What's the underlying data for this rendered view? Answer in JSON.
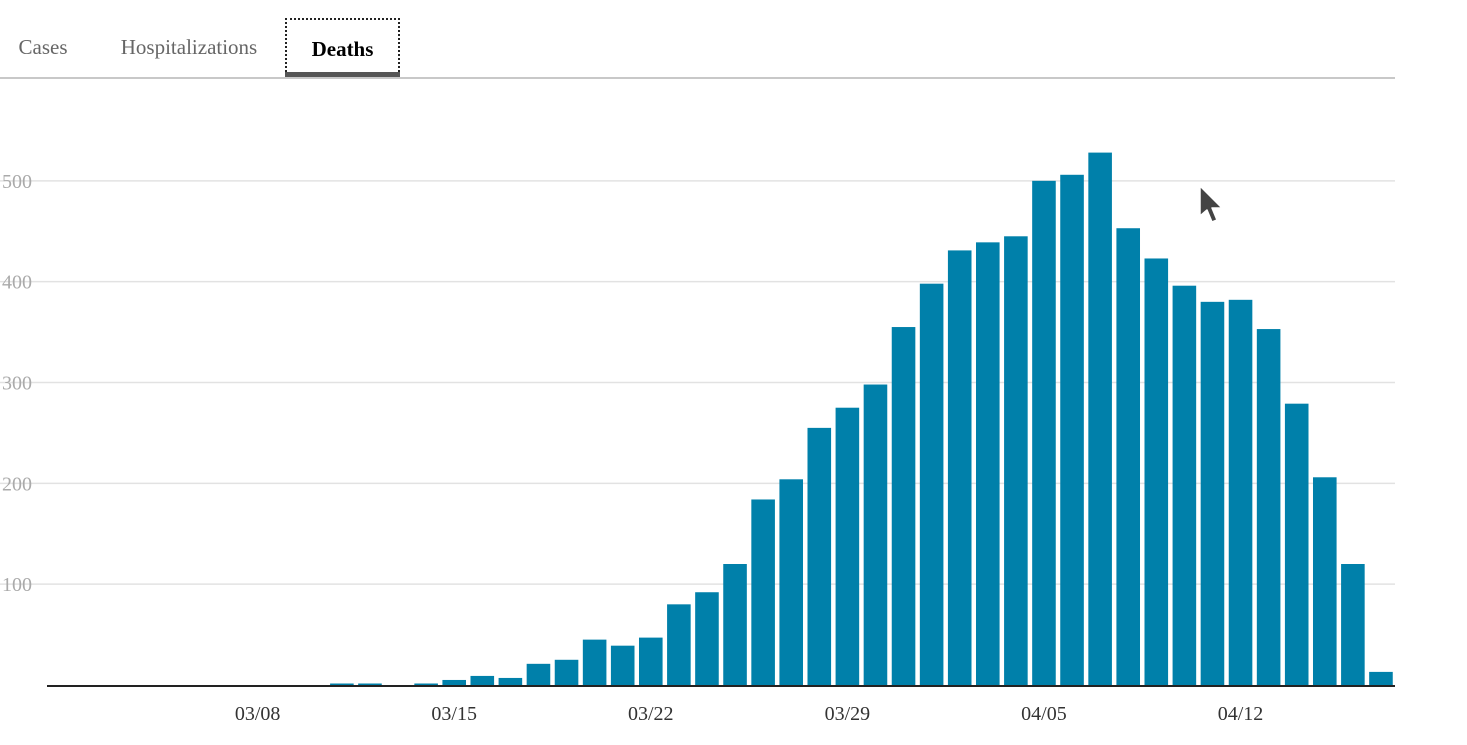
{
  "tabs": [
    {
      "label": "Cases",
      "active": false
    },
    {
      "label": "Hospitalizations",
      "active": false
    },
    {
      "label": "Deaths",
      "active": true
    }
  ],
  "colors": {
    "bar": "#0080aa",
    "grid": "#e2e2e2",
    "axis": "#222222",
    "tick_text": "#aaaaaa"
  },
  "chart_data": {
    "type": "bar",
    "categories": [
      "03/01",
      "03/02",
      "03/03",
      "03/04",
      "03/05",
      "03/06",
      "03/07",
      "03/08",
      "03/09",
      "03/10",
      "03/11",
      "03/12",
      "03/13",
      "03/14",
      "03/15",
      "03/16",
      "03/17",
      "03/18",
      "03/19",
      "03/20",
      "03/21",
      "03/22",
      "03/23",
      "03/24",
      "03/25",
      "03/26",
      "03/27",
      "03/28",
      "03/29",
      "03/30",
      "03/31",
      "04/01",
      "04/02",
      "04/03",
      "04/04",
      "04/05",
      "04/06",
      "04/07",
      "04/08",
      "04/09",
      "04/10",
      "04/11",
      "04/12",
      "04/13",
      "04/14",
      "04/15",
      "04/16",
      "04/17"
    ],
    "values": [
      0,
      0,
      0,
      0,
      0,
      0,
      0,
      0,
      0,
      0,
      1,
      1,
      0,
      1,
      5,
      9,
      7,
      21,
      25,
      45,
      39,
      47,
      80,
      92,
      120,
      184,
      204,
      255,
      275,
      298,
      355,
      398,
      431,
      439,
      445,
      500,
      506,
      528,
      453,
      423,
      396,
      380,
      382,
      353,
      279,
      206,
      120,
      13
    ],
    "x_tick_labels": [
      "03/08",
      "03/15",
      "03/22",
      "03/29",
      "04/05",
      "04/12"
    ],
    "y_tick_labels": [
      "100",
      "200",
      "300",
      "400",
      "500"
    ],
    "y_ticks": [
      100,
      200,
      300,
      400,
      500
    ],
    "ylim": [
      0,
      600
    ],
    "grid": true,
    "title": "",
    "xlabel": "",
    "ylabel": ""
  }
}
